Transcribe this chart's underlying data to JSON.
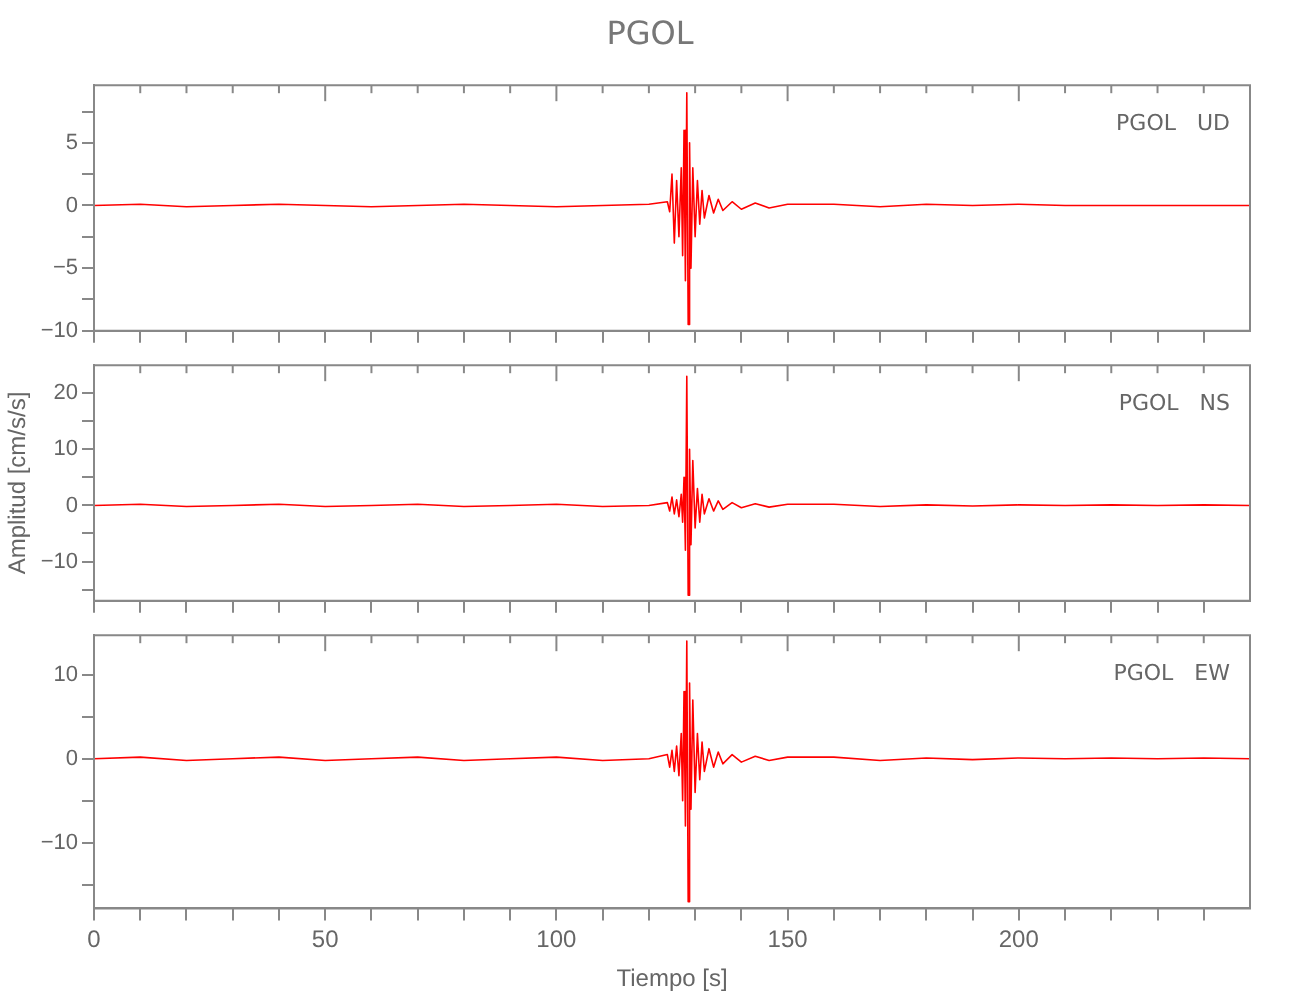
{
  "chart_data": [
    {
      "type": "line",
      "title": "PGOL",
      "annotations": [
        "PGOL   UD"
      ],
      "tick_labels": "y",
      "legend": false,
      "grid": false,
      "marker": "none",
      "line_style": "solid",
      "x": [
        0,
        10,
        20,
        30,
        40,
        50,
        60,
        70,
        80,
        90,
        100,
        110,
        120,
        124,
        124.5,
        125,
        125.5,
        126,
        126.5,
        127,
        127.3,
        127.6,
        127.9,
        128.2,
        128.5,
        128.8,
        129.1,
        129.5,
        130,
        130.5,
        131,
        131.5,
        132,
        133,
        134,
        135,
        136,
        138,
        140,
        143,
        146,
        150,
        160,
        170,
        180,
        190,
        200,
        210,
        220,
        230,
        240,
        250
      ],
      "xlim": [
        0,
        250
      ],
      "xticks": [
        0,
        {
          "value": 10,
          "label": null
        },
        {
          "value": 20,
          "label": null
        },
        {
          "value": 30,
          "label": null
        },
        {
          "value": 40,
          "label": null
        },
        50,
        {
          "value": 60,
          "label": null
        },
        {
          "value": 70,
          "label": null
        },
        {
          "value": 80,
          "label": null
        },
        {
          "value": 90,
          "label": null
        },
        100,
        {
          "value": 110,
          "label": null
        },
        {
          "value": 120,
          "label": null
        },
        {
          "value": 130,
          "label": null
        },
        {
          "value": 140,
          "label": null
        },
        150,
        {
          "value": 160,
          "label": null
        },
        {
          "value": 170,
          "label": null
        },
        {
          "value": 180,
          "label": null
        },
        {
          "value": 190,
          "label": null
        },
        200,
        {
          "value": 210,
          "label": null
        },
        {
          "value": 220,
          "label": null
        },
        {
          "value": 230,
          "label": null
        },
        {
          "value": 240,
          "label": null
        }
      ],
      "ylim": [
        -10,
        9.6
      ],
      "yticks": [
        -10,
        {
          "value": -7.5,
          "label": null
        },
        -5,
        {
          "value": -2.5,
          "label": null
        },
        0,
        {
          "value": 2.5,
          "label": null
        },
        5,
        {
          "value": 7.5,
          "label": null
        }
      ],
      "series": [
        {
          "color": "#ff0000",
          "values": [
            0,
            0.1,
            -0.1,
            0,
            0.1,
            0,
            -0.1,
            0,
            0.1,
            0,
            -0.1,
            0,
            0.1,
            0.3,
            -0.5,
            2.5,
            -3,
            2,
            -2.5,
            3,
            -4,
            6,
            -6,
            9,
            -9.5,
            5,
            -5,
            3,
            -2.5,
            2,
            -1.5,
            1.2,
            -1,
            0.8,
            -0.6,
            0.5,
            -0.4,
            0.3,
            -0.3,
            0.2,
            -0.2,
            0.1,
            0.1,
            -0.1,
            0.1,
            0,
            0.1,
            0,
            0,
            0,
            0,
            0
          ]
        }
      ]
    },
    {
      "type": "line",
      "ylabel": "Amplitud [cm/s/s]",
      "annotations": [
        "PGOL   NS"
      ],
      "tick_labels": "y",
      "legend": false,
      "grid": false,
      "marker": "none",
      "line_style": "solid",
      "x": [
        0,
        10,
        20,
        30,
        40,
        50,
        60,
        70,
        80,
        90,
        100,
        110,
        120,
        124,
        124.5,
        125,
        125.5,
        126,
        126.5,
        127,
        127.3,
        127.6,
        127.9,
        128.2,
        128.5,
        128.8,
        129.1,
        129.5,
        130,
        130.5,
        131,
        131.5,
        132,
        133,
        134,
        135,
        136,
        138,
        140,
        143,
        146,
        150,
        160,
        170,
        180,
        190,
        200,
        210,
        220,
        230,
        240,
        250
      ],
      "xlim": [
        0,
        250
      ],
      "xticks": [
        0,
        {
          "value": 10,
          "label": null
        },
        {
          "value": 20,
          "label": null
        },
        {
          "value": 30,
          "label": null
        },
        {
          "value": 40,
          "label": null
        },
        50,
        {
          "value": 60,
          "label": null
        },
        {
          "value": 70,
          "label": null
        },
        {
          "value": 80,
          "label": null
        },
        {
          "value": 90,
          "label": null
        },
        100,
        {
          "value": 110,
          "label": null
        },
        {
          "value": 120,
          "label": null
        },
        {
          "value": 130,
          "label": null
        },
        {
          "value": 140,
          "label": null
        },
        150,
        {
          "value": 160,
          "label": null
        },
        {
          "value": 170,
          "label": null
        },
        {
          "value": 180,
          "label": null
        },
        {
          "value": 190,
          "label": null
        },
        200,
        {
          "value": 210,
          "label": null
        },
        {
          "value": 220,
          "label": null
        },
        {
          "value": 230,
          "label": null
        },
        {
          "value": 240,
          "label": null
        }
      ],
      "ylim": [
        -17,
        25
      ],
      "yticks": [
        {
          "value": -15,
          "label": null
        },
        -10,
        {
          "value": -5,
          "label": null
        },
        0,
        {
          "value": 5,
          "label": null
        },
        10,
        {
          "value": 15,
          "label": null
        },
        20
      ],
      "series": [
        {
          "color": "#ff0000",
          "values": [
            0,
            0.2,
            -0.2,
            0,
            0.2,
            -0.2,
            0,
            0.2,
            -0.2,
            0,
            0.2,
            -0.2,
            0,
            0.5,
            -1,
            1.5,
            -1.5,
            1,
            -2,
            2,
            -3,
            5,
            -8,
            23,
            -16,
            10,
            -7,
            8,
            -4,
            3,
            -3,
            2,
            -1.5,
            1.2,
            -1,
            0.8,
            -0.7,
            0.5,
            -0.4,
            0.3,
            -0.3,
            0.2,
            0.2,
            -0.2,
            0.1,
            -0.1,
            0.1,
            0,
            0.1,
            0,
            0.1,
            0
          ]
        }
      ]
    },
    {
      "type": "line",
      "xlabel": "Tiempo [s]",
      "annotations": [
        "PGOL   EW"
      ],
      "legend": false,
      "grid": false,
      "marker": "none",
      "line_style": "solid",
      "x": [
        0,
        10,
        20,
        30,
        40,
        50,
        60,
        70,
        80,
        90,
        100,
        110,
        120,
        124,
        124.5,
        125,
        125.5,
        126,
        126.5,
        127,
        127.3,
        127.6,
        127.9,
        128.2,
        128.5,
        128.8,
        129.1,
        129.5,
        130,
        130.5,
        131,
        131.5,
        132,
        133,
        134,
        135,
        136,
        138,
        140,
        143,
        146,
        150,
        160,
        170,
        180,
        190,
        200,
        210,
        220,
        230,
        240,
        250
      ],
      "xlim": [
        0,
        250
      ],
      "xticks": [
        0,
        {
          "value": 10,
          "label": null
        },
        {
          "value": 20,
          "label": null
        },
        {
          "value": 30,
          "label": null
        },
        {
          "value": 40,
          "label": null
        },
        50,
        {
          "value": 60,
          "label": null
        },
        {
          "value": 70,
          "label": null
        },
        {
          "value": 80,
          "label": null
        },
        {
          "value": 90,
          "label": null
        },
        100,
        {
          "value": 110,
          "label": null
        },
        {
          "value": 120,
          "label": null
        },
        {
          "value": 130,
          "label": null
        },
        {
          "value": 140,
          "label": null
        },
        150,
        {
          "value": 160,
          "label": null
        },
        {
          "value": 170,
          "label": null
        },
        {
          "value": 180,
          "label": null
        },
        {
          "value": 190,
          "label": null
        },
        200,
        {
          "value": 210,
          "label": null
        },
        {
          "value": 220,
          "label": null
        },
        {
          "value": 230,
          "label": null
        },
        {
          "value": 240,
          "label": null
        }
      ],
      "ylim": [
        -17.8,
        14.7
      ],
      "yticks": [
        {
          "value": -15,
          "label": null
        },
        -10,
        {
          "value": -5,
          "label": null
        },
        0,
        {
          "value": 5,
          "label": null
        },
        10
      ],
      "series": [
        {
          "color": "#ff0000",
          "values": [
            0,
            0.2,
            -0.2,
            0,
            0.2,
            -0.2,
            0,
            0.2,
            -0.2,
            0,
            0.2,
            -0.2,
            0,
            0.5,
            -1,
            1,
            -1.5,
            1.5,
            -2,
            3,
            -5,
            8,
            -8,
            14,
            -17,
            9,
            -6,
            7,
            -4,
            3,
            -2.5,
            2,
            -1.5,
            1.2,
            -1,
            0.8,
            -0.6,
            0.5,
            -0.4,
            0.3,
            -0.2,
            0.2,
            0.2,
            -0.2,
            0.1,
            -0.1,
            0.1,
            0,
            0.1,
            0,
            0.1,
            0
          ]
        }
      ]
    }
  ]
}
